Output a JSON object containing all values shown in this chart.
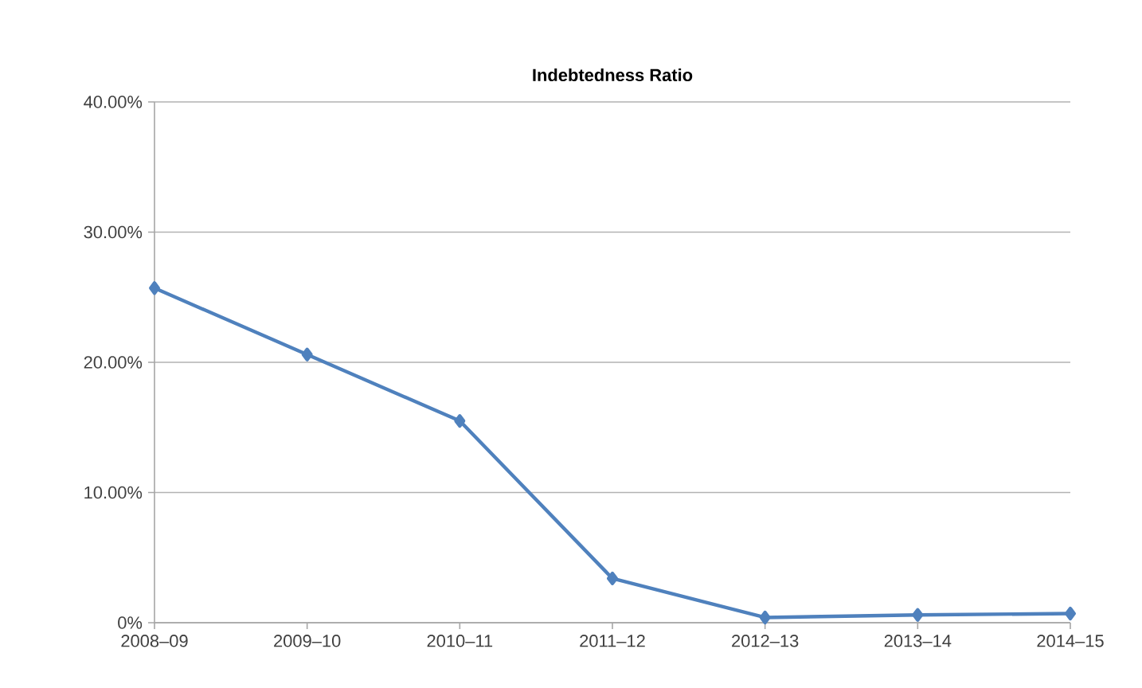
{
  "chart_data": {
    "type": "line",
    "title": "Indebtedness Ratio",
    "categories": [
      "2008–09",
      "2009–10",
      "2010–11",
      "2011–12",
      "2012–13",
      "2013–14",
      "2014–15"
    ],
    "series": [
      {
        "color": "#4f81bd",
        "values": [
          25.7,
          20.6,
          15.5,
          3.4,
          0.4,
          0.6,
          0.7
        ]
      }
    ],
    "ylim": [
      0,
      40
    ],
    "yticks": [
      {
        "value": 0,
        "label": "0%"
      },
      {
        "value": 10,
        "label": "10.00%"
      },
      {
        "value": 20,
        "label": "20.00%"
      },
      {
        "value": 30,
        "label": "30.00%"
      },
      {
        "value": 40,
        "label": "40.00%"
      }
    ],
    "grid": "y",
    "marker": "diamond",
    "line_style": "solid",
    "legend": false
  }
}
